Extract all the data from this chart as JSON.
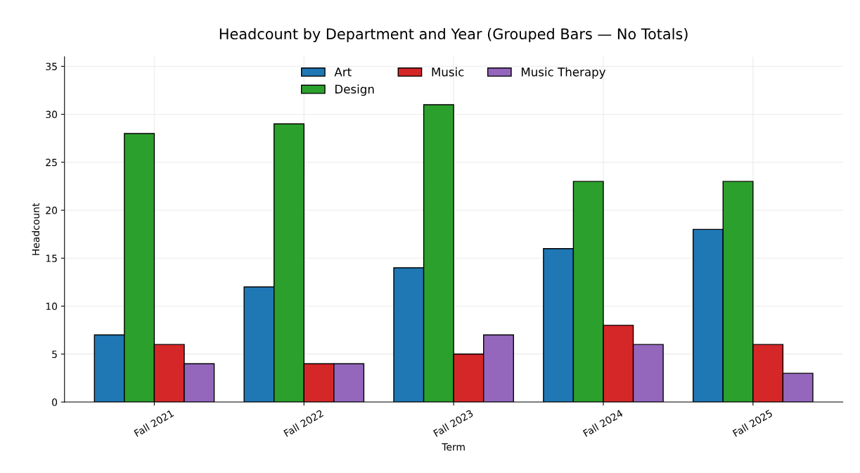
{
  "chart_data": {
    "type": "bar",
    "title": "Headcount by Department and Year (Grouped Bars — No Totals)",
    "xlabel": "Term",
    "ylabel": "Headcount",
    "categories": [
      "Fall 2021",
      "Fall 2022",
      "Fall 2023",
      "Fall 2024",
      "Fall 2025"
    ],
    "series": [
      {
        "name": "Art",
        "color": "#1f77b4",
        "values": [
          7,
          12,
          14,
          16,
          18
        ]
      },
      {
        "name": "Design",
        "color": "#2ca02c",
        "values": [
          28,
          29,
          31,
          23,
          23
        ]
      },
      {
        "name": "Music",
        "color": "#d62728",
        "values": [
          6,
          4,
          5,
          8,
          6
        ]
      },
      {
        "name": "Music Therapy",
        "color": "#9467bd",
        "values": [
          4,
          4,
          7,
          6,
          3
        ]
      }
    ],
    "ylim": [
      0,
      36
    ],
    "yticks": [
      0,
      5,
      10,
      15,
      20,
      25,
      30,
      35
    ],
    "grid": true,
    "legend": "top"
  }
}
